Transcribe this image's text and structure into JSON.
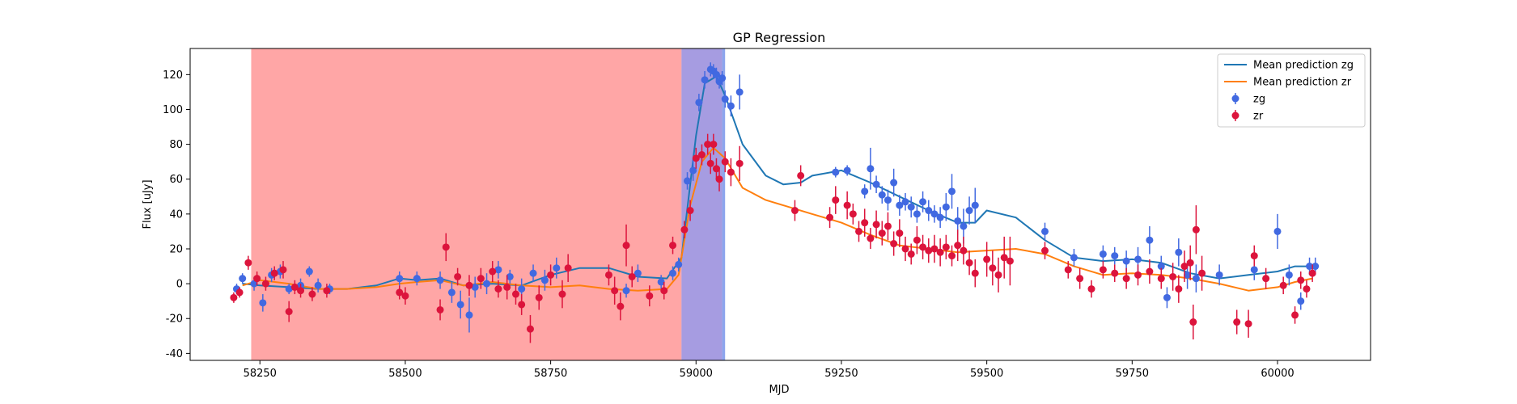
{
  "chart_data": {
    "type": "scatter",
    "title": "GP Regression",
    "xlabel": "MJD",
    "ylabel": "Flux [uJy]",
    "xlim": [
      58130,
      60160
    ],
    "ylim": [
      -44,
      135
    ],
    "xticks": [
      58250,
      58500,
      58750,
      59000,
      59250,
      59500,
      59750,
      60000
    ],
    "yticks": [
      -40,
      -20,
      0,
      20,
      40,
      60,
      80,
      100,
      120
    ],
    "grid": false,
    "legend_position": "top-right",
    "shaded_regions": [
      {
        "x0": 58235,
        "x1": 58975,
        "color": "#ff0000",
        "alpha": 0.35
      },
      {
        "x0": 58975,
        "x1": 59045,
        "color": "#6a5acd",
        "alpha": 0.6
      },
      {
        "x0": 59045,
        "x1": 59050,
        "color": "#4169e1",
        "alpha": 0.6
      }
    ],
    "lines": [
      {
        "name": "Mean prediction zg",
        "color": "#1f77b4",
        "x": [
          58220,
          58250,
          58300,
          58350,
          58400,
          58450,
          58490,
          58520,
          58560,
          58600,
          58650,
          58700,
          58750,
          58800,
          58850,
          58900,
          58950,
          58975,
          59000,
          59015,
          59035,
          59050,
          59080,
          59120,
          59150,
          59180,
          59200,
          59250,
          59300,
          59350,
          59400,
          59450,
          59480,
          59500,
          59550,
          59600,
          59650,
          59700,
          59750,
          59800,
          59850,
          59900,
          59950,
          60000,
          60030,
          60060
        ],
        "y": [
          0,
          -1,
          -2,
          -3,
          -3,
          -1,
          3,
          2,
          3,
          -1,
          0,
          -1,
          5,
          9,
          9,
          4,
          3,
          15,
          85,
          115,
          119,
          108,
          80,
          62,
          57,
          58,
          62,
          65,
          58,
          50,
          42,
          35,
          35,
          42,
          38,
          25,
          15,
          13,
          14,
          12,
          6,
          3,
          5,
          7,
          10,
          10
        ]
      },
      {
        "name": "Mean prediction zr",
        "color": "#ff7f0e",
        "x": [
          58220,
          58250,
          58300,
          58350,
          58400,
          58450,
          58490,
          58520,
          58560,
          58600,
          58650,
          58700,
          58750,
          58800,
          58850,
          58900,
          58950,
          58970,
          58990,
          59010,
          59030,
          59050,
          59080,
          59120,
          59150,
          59200,
          59250,
          59300,
          59350,
          59400,
          59450,
          59500,
          59550,
          59600,
          59650,
          59700,
          59750,
          59800,
          59850,
          59900,
          59950,
          60000,
          60030,
          60060
        ],
        "y": [
          -1,
          2,
          0,
          -3,
          -3,
          -2,
          0,
          1,
          2,
          -1,
          1,
          -1,
          -2,
          -1,
          -3,
          -4,
          -3,
          5,
          45,
          70,
          78,
          72,
          55,
          48,
          45,
          40,
          35,
          28,
          22,
          20,
          18,
          19,
          20,
          17,
          10,
          5,
          6,
          5,
          3,
          0,
          -4,
          -2,
          1,
          3
        ]
      }
    ],
    "series": [
      {
        "name": "zg",
        "color": "#4169e1",
        "points": [
          [
            58210,
            -3,
            3
          ],
          [
            58220,
            3,
            3
          ],
          [
            58240,
            0,
            4
          ],
          [
            58255,
            -11,
            5
          ],
          [
            58270,
            5,
            4
          ],
          [
            58285,
            7,
            4
          ],
          [
            58300,
            -3,
            3
          ],
          [
            58320,
            -1,
            4
          ],
          [
            58335,
            7,
            3
          ],
          [
            58350,
            -1,
            4
          ],
          [
            58370,
            -3,
            3
          ],
          [
            58490,
            3,
            4
          ],
          [
            58520,
            3,
            4
          ],
          [
            58560,
            2,
            5
          ],
          [
            58580,
            -5,
            6
          ],
          [
            58595,
            -12,
            8
          ],
          [
            58610,
            -18,
            10
          ],
          [
            58620,
            -2,
            6
          ],
          [
            58640,
            0,
            6
          ],
          [
            58660,
            8,
            5
          ],
          [
            58680,
            4,
            4
          ],
          [
            58700,
            -3,
            6
          ],
          [
            58720,
            6,
            5
          ],
          [
            58740,
            2,
            6
          ],
          [
            58760,
            9,
            6
          ],
          [
            58880,
            -4,
            4
          ],
          [
            58900,
            6,
            5
          ],
          [
            58940,
            1,
            4
          ],
          [
            58960,
            6,
            4
          ],
          [
            58970,
            11,
            4
          ],
          [
            58985,
            59,
            5
          ],
          [
            58995,
            65,
            6
          ],
          [
            59005,
            104,
            5
          ],
          [
            59015,
            117,
            5
          ],
          [
            59025,
            123,
            4
          ],
          [
            59030,
            122,
            4
          ],
          [
            59035,
            120,
            4
          ],
          [
            59040,
            116,
            4
          ],
          [
            59045,
            118,
            4
          ],
          [
            59050,
            106,
            5
          ],
          [
            59060,
            102,
            6
          ],
          [
            59075,
            110,
            10
          ],
          [
            59240,
            64,
            3
          ],
          [
            59260,
            65,
            3
          ],
          [
            59290,
            53,
            4
          ],
          [
            59300,
            66,
            12
          ],
          [
            59310,
            57,
            5
          ],
          [
            59320,
            51,
            5
          ],
          [
            59330,
            48,
            6
          ],
          [
            59340,
            58,
            8
          ],
          [
            59350,
            45,
            6
          ],
          [
            59360,
            47,
            5
          ],
          [
            59370,
            44,
            6
          ],
          [
            59380,
            40,
            5
          ],
          [
            59390,
            47,
            6
          ],
          [
            59400,
            42,
            6
          ],
          [
            59410,
            40,
            5
          ],
          [
            59420,
            38,
            6
          ],
          [
            59430,
            44,
            8
          ],
          [
            59440,
            53,
            10
          ],
          [
            59450,
            36,
            8
          ],
          [
            59460,
            33,
            10
          ],
          [
            59470,
            42,
            8
          ],
          [
            59480,
            45,
            10
          ],
          [
            59600,
            30,
            5
          ],
          [
            59650,
            15,
            5
          ],
          [
            59700,
            17,
            5
          ],
          [
            59720,
            16,
            5
          ],
          [
            59740,
            13,
            6
          ],
          [
            59760,
            14,
            7
          ],
          [
            59780,
            25,
            8
          ],
          [
            59800,
            10,
            6
          ],
          [
            59810,
            -8,
            6
          ],
          [
            59830,
            18,
            8
          ],
          [
            59845,
            5,
            8
          ],
          [
            59860,
            3,
            8
          ],
          [
            59900,
            5,
            6
          ],
          [
            59960,
            8,
            6
          ],
          [
            60000,
            30,
            10
          ],
          [
            60020,
            5,
            6
          ],
          [
            60040,
            -10,
            5
          ],
          [
            60055,
            10,
            5
          ],
          [
            60065,
            10,
            5
          ]
        ]
      },
      {
        "name": "zr",
        "color": "#dc143c",
        "points": [
          [
            58205,
            -8,
            3
          ],
          [
            58215,
            -5,
            3
          ],
          [
            58230,
            12,
            4
          ],
          [
            58245,
            3,
            4
          ],
          [
            58260,
            0,
            4
          ],
          [
            58275,
            6,
            4
          ],
          [
            58290,
            8,
            5
          ],
          [
            58300,
            -16,
            6
          ],
          [
            58310,
            -2,
            4
          ],
          [
            58320,
            -4,
            4
          ],
          [
            58340,
            -6,
            4
          ],
          [
            58365,
            -4,
            4
          ],
          [
            58490,
            -5,
            4
          ],
          [
            58500,
            -7,
            5
          ],
          [
            58560,
            -15,
            6
          ],
          [
            58570,
            21,
            8
          ],
          [
            58590,
            4,
            5
          ],
          [
            58610,
            -1,
            6
          ],
          [
            58630,
            3,
            6
          ],
          [
            58650,
            7,
            6
          ],
          [
            58660,
            -3,
            5
          ],
          [
            58675,
            -2,
            7
          ],
          [
            58690,
            -6,
            6
          ],
          [
            58700,
            -12,
            6
          ],
          [
            58715,
            -26,
            8
          ],
          [
            58730,
            -8,
            7
          ],
          [
            58750,
            5,
            6
          ],
          [
            58770,
            -6,
            8
          ],
          [
            58780,
            9,
            8
          ],
          [
            58850,
            5,
            6
          ],
          [
            58860,
            -4,
            8
          ],
          [
            58870,
            -13,
            8
          ],
          [
            58880,
            22,
            12
          ],
          [
            58890,
            4,
            6
          ],
          [
            58920,
            -7,
            6
          ],
          [
            58945,
            -4,
            5
          ],
          [
            58960,
            22,
            5
          ],
          [
            58980,
            31,
            5
          ],
          [
            58990,
            42,
            6
          ],
          [
            59000,
            72,
            6
          ],
          [
            59010,
            74,
            6
          ],
          [
            59020,
            80,
            6
          ],
          [
            59025,
            69,
            6
          ],
          [
            59030,
            80,
            6
          ],
          [
            59035,
            66,
            6
          ],
          [
            59040,
            60,
            7
          ],
          [
            59050,
            70,
            6
          ],
          [
            59060,
            64,
            8
          ],
          [
            59075,
            69,
            10
          ],
          [
            59170,
            42,
            6
          ],
          [
            59180,
            62,
            6
          ],
          [
            59230,
            38,
            6
          ],
          [
            59240,
            48,
            8
          ],
          [
            59260,
            45,
            8
          ],
          [
            59270,
            40,
            6
          ],
          [
            59280,
            30,
            6
          ],
          [
            59290,
            35,
            8
          ],
          [
            59300,
            26,
            6
          ],
          [
            59310,
            34,
            8
          ],
          [
            59320,
            29,
            7
          ],
          [
            59330,
            33,
            8
          ],
          [
            59340,
            23,
            7
          ],
          [
            59350,
            29,
            8
          ],
          [
            59360,
            20,
            7
          ],
          [
            59370,
            17,
            6
          ],
          [
            59380,
            25,
            8
          ],
          [
            59390,
            21,
            7
          ],
          [
            59400,
            19,
            7
          ],
          [
            59410,
            20,
            8
          ],
          [
            59420,
            18,
            8
          ],
          [
            59430,
            21,
            7
          ],
          [
            59440,
            16,
            6
          ],
          [
            59450,
            22,
            9
          ],
          [
            59460,
            19,
            8
          ],
          [
            59470,
            12,
            7
          ],
          [
            59480,
            6,
            8
          ],
          [
            59500,
            14,
            10
          ],
          [
            59510,
            9,
            10
          ],
          [
            59520,
            5,
            10
          ],
          [
            59530,
            15,
            12
          ],
          [
            59540,
            13,
            14
          ],
          [
            59600,
            19,
            5
          ],
          [
            59640,
            8,
            5
          ],
          [
            59660,
            3,
            6
          ],
          [
            59680,
            -3,
            5
          ],
          [
            59700,
            8,
            5
          ],
          [
            59720,
            6,
            5
          ],
          [
            59740,
            3,
            6
          ],
          [
            59760,
            5,
            6
          ],
          [
            59780,
            7,
            7
          ],
          [
            59800,
            3,
            6
          ],
          [
            59820,
            4,
            8
          ],
          [
            59830,
            -3,
            8
          ],
          [
            59840,
            10,
            9
          ],
          [
            59850,
            12,
            10
          ],
          [
            59855,
            -22,
            10
          ],
          [
            59860,
            31,
            14
          ],
          [
            59870,
            6,
            10
          ],
          [
            59930,
            -22,
            7
          ],
          [
            59950,
            -23,
            8
          ],
          [
            59960,
            16,
            6
          ],
          [
            59980,
            3,
            6
          ],
          [
            60010,
            -1,
            5
          ],
          [
            60030,
            -18,
            5
          ],
          [
            60040,
            2,
            5
          ],
          [
            60050,
            -3,
            5
          ],
          [
            60060,
            6,
            5
          ]
        ]
      }
    ],
    "legend": [
      {
        "label": "Mean prediction zg",
        "kind": "line",
        "color": "#1f77b4"
      },
      {
        "label": "Mean prediction zr",
        "kind": "line",
        "color": "#ff7f0e"
      },
      {
        "label": "zg",
        "kind": "marker",
        "color": "#4169e1"
      },
      {
        "label": "zr",
        "kind": "marker",
        "color": "#dc143c"
      }
    ]
  }
}
